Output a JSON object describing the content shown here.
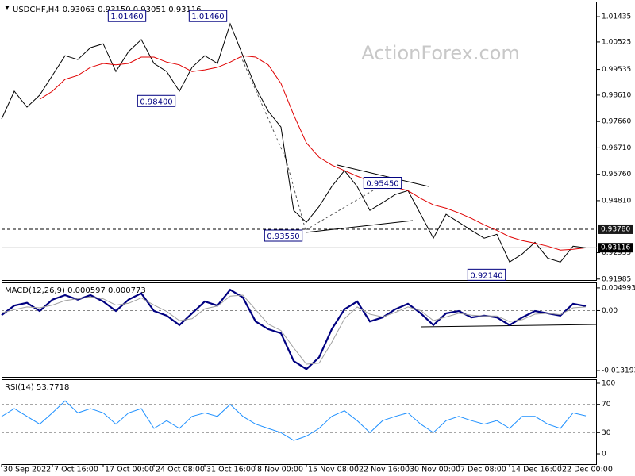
{
  "watermark": "ActionForex.com",
  "chart_data": [
    {
      "type": "line",
      "title": "USDCHF,H4",
      "subtitle": "0.93063 0.93150 0.93051 0.93116",
      "xlim": [
        0,
        46.875
      ],
      "ylim": [
        0.9195,
        1.0198
      ],
      "xticks": [
        {
          "value": 0,
          "label": "30 Sep 2022"
        },
        {
          "value": 4,
          "label": "7 Oct 16:00"
        },
        {
          "value": 8,
          "label": "17 Oct 00:00"
        },
        {
          "value": 12,
          "label": "24 Oct 08:00"
        },
        {
          "value": 16,
          "label": "31 Oct 16:00"
        },
        {
          "value": 20,
          "label": "8 Nov 00:00"
        },
        {
          "value": 24,
          "label": "15 Nov 08:00"
        },
        {
          "value": 28,
          "label": "22 Nov 16:00"
        },
        {
          "value": 32,
          "label": "30 Nov 00:00"
        },
        {
          "value": 36,
          "label": "7 Dec 08:00"
        },
        {
          "value": 40,
          "label": "14 Dec 16:00"
        },
        {
          "value": 44,
          "label": "22 Dec 00:00"
        }
      ],
      "yticks": [
        1.01435,
        1.00525,
        0.99535,
        {
          "value": 0.9861,
          "label": "0.98610"
        },
        {
          "value": 0.9766,
          "label": "0.97660"
        },
        {
          "value": 0.9671,
          "label": "0.96710"
        },
        {
          "value": 0.9576,
          "label": "0.95760"
        },
        {
          "value": 0.9481,
          "label": "0.94810"
        },
        0.92935,
        0.91985
      ],
      "series": [
        {
          "color": "#000000",
          "values": [
            0.9775,
            0.9875,
            0.9818,
            0.9861,
            0.9932,
            1.0003,
            0.9989,
            1.0032,
            1.0046,
            0.9946,
            1.0018,
            1.0061,
            0.9975,
            0.9946,
            0.9875,
            0.9961,
            1.0003,
            0.9975,
            1.0118,
            1.0003,
            0.9889,
            0.9803,
            0.9746,
            0.9446,
            0.9403,
            0.946,
            0.9532,
            0.9589,
            0.9532,
            0.9446,
            0.9474,
            0.9503,
            0.9517,
            0.9432,
            0.9346,
            0.9432,
            0.9403,
            0.9374,
            0.9346,
            0.936,
            0.926,
            0.9289,
            0.9331,
            0.9274,
            0.926,
            0.9317,
            0.9311
          ]
        },
        {
          "color": "#e00000",
          "values": [
            null,
            null,
            null,
            0.9846,
            0.9875,
            0.9918,
            0.9932,
            0.9961,
            0.9975,
            0.997,
            0.9975,
            0.9998,
            0.9998,
            0.998,
            0.997,
            0.9946,
            0.9952,
            0.9961,
            0.998,
            1.0003,
            0.9998,
            0.997,
            0.9903,
            0.979,
            0.9689,
            0.9637,
            0.9609,
            0.9589,
            0.9569,
            0.9552,
            0.9537,
            0.9529,
            0.9517,
            0.9489,
            0.9466,
            0.9454,
            0.9437,
            0.9417,
            0.9394,
            0.9374,
            0.9351,
            0.9337,
            0.9328,
            0.9317,
            0.9303,
            0.9306,
            0.9311
          ]
        }
      ],
      "annotations": [
        {
          "value": 1.0146,
          "label": "1.01460"
        },
        {
          "value": 1.0146,
          "label": "1.01460"
        },
        {
          "value": 0.984,
          "label": "0.98400"
        },
        {
          "value": 0.9545,
          "label": "0.95450"
        },
        {
          "value": 0.9355,
          "label": "0.93550"
        },
        {
          "value": 0.9214,
          "label": "0.92140"
        }
      ],
      "resistance": {
        "value": 0.9378,
        "label": "0.93780"
      },
      "last_price": {
        "value": 0.93116,
        "label": "0.93116"
      }
    },
    {
      "type": "line",
      "title": "MACD(12,26,9) 0.000597 0.000773",
      "xlim": [
        0,
        46.875
      ],
      "ylim": [
        -0.0146,
        0.0062
      ],
      "yticks": [
        0.004993,
        {
          "value": 0,
          "label": "0.00"
        },
        -0.013193
      ],
      "levels": [
        0
      ],
      "series": [
        {
          "color": "#000080",
          "values": [
            -0.001,
            0.0011,
            0.0017,
            -0.0001,
            0.0024,
            0.0034,
            0.0024,
            0.0034,
            0.002,
            -0.0001,
            0.0024,
            0.0038,
            -0.0001,
            -0.0011,
            -0.0032,
            -0.0006,
            0.002,
            0.0011,
            0.0046,
            0.0029,
            -0.0024,
            -0.0041,
            -0.005,
            -0.0111,
            -0.0129,
            -0.0103,
            -0.0041,
            0.0003,
            0.002,
            -0.0024,
            -0.0015,
            0.0003,
            0.0015,
            -0.0006,
            -0.0032,
            -0.0006,
            -0.0001,
            -0.0015,
            -0.0011,
            -0.0015,
            -0.0032,
            -0.0015,
            -0.0001,
            -0.0006,
            -0.0011,
            0.0015,
            0.001
          ]
        },
        {
          "color": "#a0a0a0",
          "values": [
            -0.0005,
            0.0002,
            0.0008,
            0.0006,
            0.0012,
            0.0022,
            0.0026,
            0.003,
            0.0026,
            0.0012,
            0.0016,
            0.0028,
            0.0012,
            -0.0002,
            -0.0022,
            -0.0018,
            0.0004,
            0.001,
            0.0032,
            0.0034,
            0.0002,
            -0.003,
            -0.0044,
            -0.0082,
            -0.0118,
            -0.0116,
            -0.007,
            -0.0018,
            0.0008,
            -0.0008,
            -0.0014,
            -0.0004,
            0.0008,
            0,
            -0.0022,
            -0.0014,
            -0.0006,
            -0.001,
            -0.0012,
            -0.0012,
            -0.0024,
            -0.002,
            -0.0008,
            -0.0006,
            -0.0009,
            0.0006,
            0.0008
          ]
        }
      ]
    },
    {
      "type": "line",
      "title": "RSI(14) 53.7718",
      "xlim": [
        0,
        46.875
      ],
      "ylim": [
        -14.6,
        105.6
      ],
      "yticks": [
        100,
        70,
        30,
        0
      ],
      "levels": [
        70,
        30
      ],
      "series": [
        {
          "color": "#1e90ff",
          "values": [
            52.8,
            64,
            53,
            42,
            58,
            75,
            58,
            64,
            58,
            42,
            58,
            64,
            36,
            47,
            36,
            53,
            58,
            53,
            70,
            53,
            42,
            36,
            30,
            19,
            25,
            36,
            53,
            61,
            47,
            30,
            47,
            53,
            58,
            42,
            30,
            47,
            53,
            47,
            42,
            47,
            36,
            53,
            53,
            42,
            36,
            58,
            53.7718
          ]
        }
      ]
    }
  ]
}
